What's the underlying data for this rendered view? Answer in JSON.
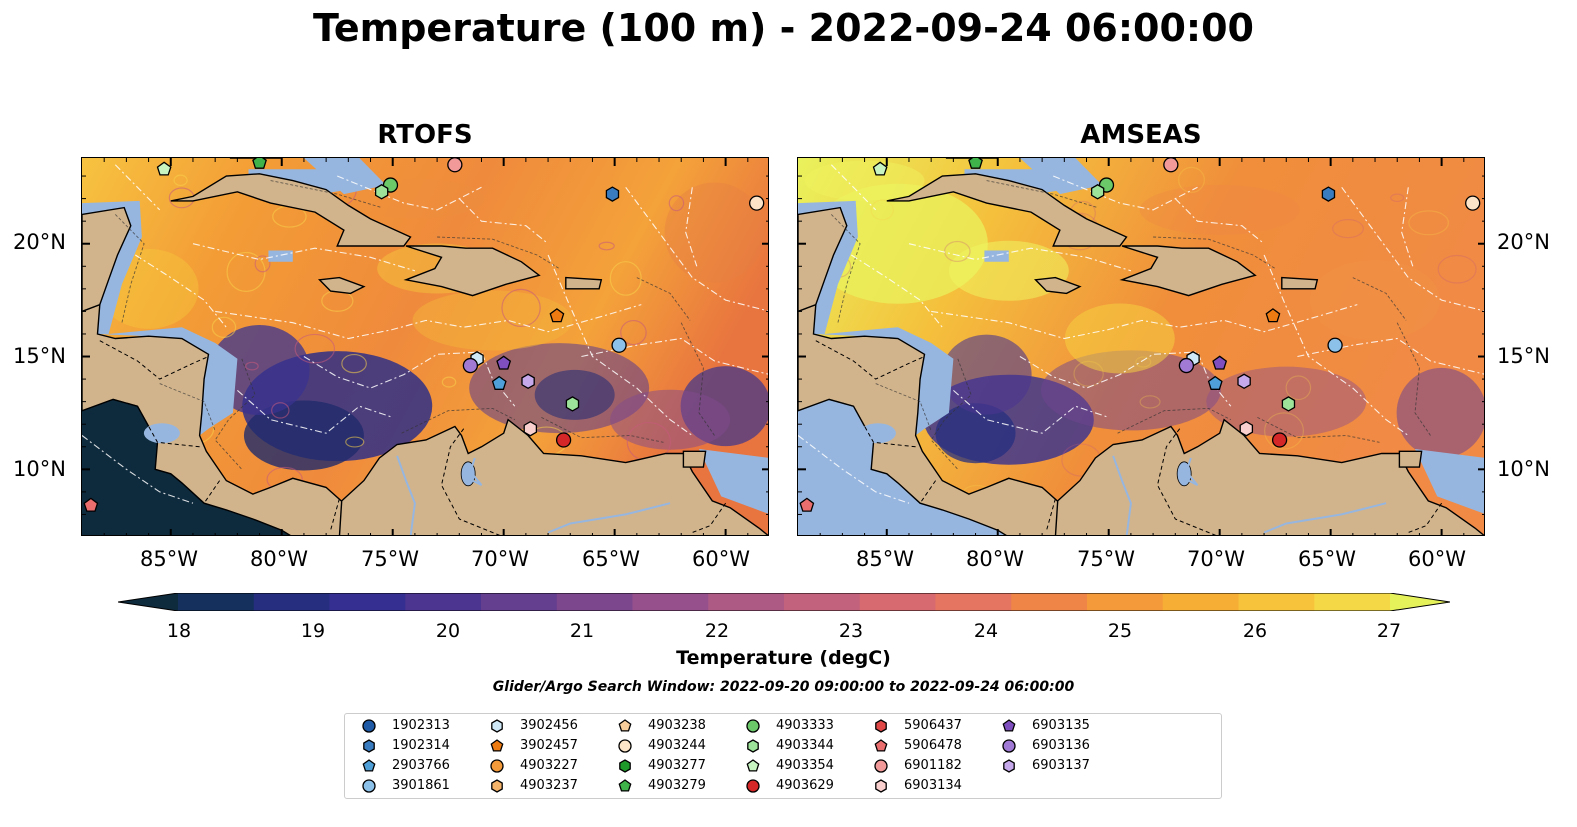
{
  "title": "Temperature (100 m) - 2022-09-24 06:00:00",
  "panels": [
    {
      "title": "RTOFS",
      "scheme": "rtofs"
    },
    {
      "title": "AMSEAS",
      "scheme": "amseas"
    }
  ],
  "x_axis": {
    "ticks": [
      "85°W",
      "80°W",
      "75°W",
      "70°W",
      "65°W",
      "60°W"
    ]
  },
  "y_axis": {
    "ticks": [
      "20°N",
      "15°N",
      "10°N"
    ]
  },
  "colorbar": {
    "label": "Temperature (degC)",
    "ticks": [
      "18",
      "19",
      "20",
      "21",
      "22",
      "23",
      "24",
      "25",
      "26",
      "27"
    ],
    "colors": [
      "#0e2a3d",
      "#15305c",
      "#262f7f",
      "#352f92",
      "#4b3590",
      "#643e8f",
      "#7d478e",
      "#96508b",
      "#ad5a85",
      "#c3627c",
      "#d66a70",
      "#e57560",
      "#f08548",
      "#f59a3a",
      "#f6ae35",
      "#f6c33a",
      "#f5d845",
      "#e5f25a"
    ]
  },
  "search_window": "Glider/Argo Search Window: 2022-09-20 09:00:00 to 2022-09-24 06:00:00",
  "legend": [
    {
      "label": "1902313",
      "shape": "circle",
      "color": "#1f5aa6"
    },
    {
      "label": "1902314",
      "shape": "hexagon",
      "color": "#3a7cc0"
    },
    {
      "label": "2903766",
      "shape": "pentagon",
      "color": "#4fa0d8"
    },
    {
      "label": "3901861",
      "shape": "circle",
      "color": "#8cc1ea"
    },
    {
      "label": "3902456",
      "shape": "hexagon",
      "color": "#cfe8f7"
    },
    {
      "label": "3902457",
      "shape": "pentagon",
      "color": "#ee7a12"
    },
    {
      "label": "4903227",
      "shape": "circle",
      "color": "#f39a3a"
    },
    {
      "label": "4903237",
      "shape": "hexagon",
      "color": "#f6b46a"
    },
    {
      "label": "4903238",
      "shape": "pentagon",
      "color": "#f8cd9c"
    },
    {
      "label": "4903244",
      "shape": "circle",
      "color": "#fce4c8"
    },
    {
      "label": "4903277",
      "shape": "hexagon",
      "color": "#1e9a2a"
    },
    {
      "label": "4903279",
      "shape": "pentagon",
      "color": "#3fb24a"
    },
    {
      "label": "4903333",
      "shape": "circle",
      "color": "#6cc96a"
    },
    {
      "label": "4903344",
      "shape": "hexagon",
      "color": "#9de39a"
    },
    {
      "label": "4903354",
      "shape": "pentagon",
      "color": "#c8f4c2"
    },
    {
      "label": "4903629",
      "shape": "circle",
      "color": "#d62728"
    },
    {
      "label": "5906437",
      "shape": "hexagon",
      "color": "#e04848"
    },
    {
      "label": "5906478",
      "shape": "pentagon",
      "color": "#ea6e6e"
    },
    {
      "label": "6901182",
      "shape": "circle",
      "color": "#f29a9a"
    },
    {
      "label": "6903134",
      "shape": "hexagon",
      "color": "#f9d0cd"
    },
    {
      "label": "6903135",
      "shape": "pentagon",
      "color": "#7f4fbf"
    },
    {
      "label": "6903136",
      "shape": "circle",
      "color": "#a17ad6"
    },
    {
      "label": "6903137",
      "shape": "hexagon",
      "color": "#c5a9ea"
    }
  ],
  "floats": [
    {
      "id": "4903354",
      "lon": -85.3,
      "lat": 23.3
    },
    {
      "id": "4903279",
      "lon": -81.0,
      "lat": 23.6
    },
    {
      "id": "4903333",
      "lon": -75.1,
      "lat": 22.6
    },
    {
      "id": "4903344",
      "lon": -75.5,
      "lat": 22.3
    },
    {
      "id": "6901182",
      "lon": -72.2,
      "lat": 23.5
    },
    {
      "id": "1902314",
      "lon": -65.1,
      "lat": 22.2
    },
    {
      "id": "4903244",
      "lon": -58.6,
      "lat": 21.8
    },
    {
      "id": "3902457",
      "lon": -67.6,
      "lat": 16.8
    },
    {
      "id": "3901861",
      "lon": -64.8,
      "lat": 15.5
    },
    {
      "id": "3902456",
      "lon": -71.2,
      "lat": 14.9
    },
    {
      "id": "6903136",
      "lon": -71.5,
      "lat": 14.6
    },
    {
      "id": "6903135",
      "lon": -70.0,
      "lat": 14.7
    },
    {
      "id": "2903766",
      "lon": -70.2,
      "lat": 13.8
    },
    {
      "id": "6903137",
      "lon": -68.9,
      "lat": 13.9
    },
    {
      "id": "4903344",
      "lon": -66.9,
      "lat": 12.9
    },
    {
      "id": "6903134",
      "lon": -68.8,
      "lat": 11.8
    },
    {
      "id": "4903629",
      "lon": -67.3,
      "lat": 11.3
    },
    {
      "id": "5906478",
      "lon": -88.6,
      "lat": 8.4
    }
  ],
  "colors": {
    "land": "#d2b48c",
    "shallow_water": "#97b6df",
    "pacific_rtofs": "#0e2a3d",
    "pacific_amseas": "#97b6df"
  }
}
